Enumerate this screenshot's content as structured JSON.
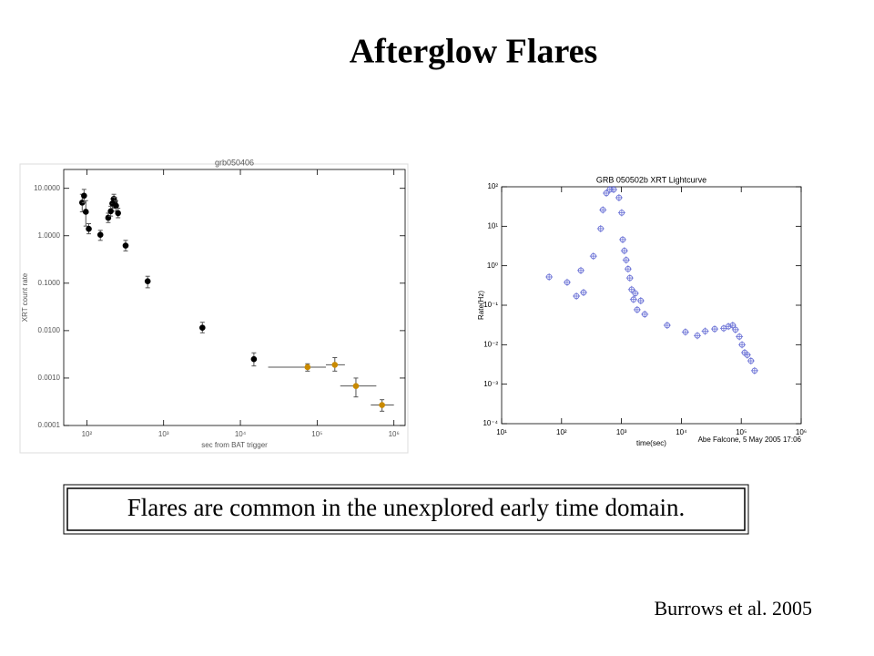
{
  "title": "Afterglow Flares",
  "chart_data": [
    {
      "type": "scatter",
      "title": "grb050406",
      "xlabel": "sec from BAT trigger",
      "ylabel": "XRT count rate",
      "xscale": "log",
      "yscale": "log",
      "marker": "filled",
      "xlim": [
        50,
        1400000
      ],
      "ylim": [
        0.0001,
        25
      ],
      "xticks": [
        {
          "value": 100,
          "label": "10²"
        },
        {
          "value": 1000,
          "label": "10³"
        },
        {
          "value": 10000,
          "label": "10⁴"
        },
        {
          "value": 100000,
          "label": "10⁵"
        },
        {
          "value": 1000000,
          "label": "10⁶"
        }
      ],
      "yticks": [
        {
          "value": 0.0001,
          "label": "0.0001"
        },
        {
          "value": 0.001,
          "label": "0.0010"
        },
        {
          "value": 0.01,
          "label": "0.0100"
        },
        {
          "value": 0.1,
          "label": "0.1000"
        },
        {
          "value": 1,
          "label": "1.0000"
        },
        {
          "value": 10,
          "label": "10.0000"
        }
      ],
      "series": [
        {
          "color": "#000000",
          "x": [
            87,
            92,
            97,
            106,
            150,
            190,
            205,
            215,
            225,
            230,
            240,
            255,
            320,
            620,
            3200,
            15000
          ],
          "values": [
            5.0,
            7.0,
            3.2,
            1.4,
            1.05,
            2.4,
            3.3,
            4.8,
            6.0,
            5.2,
            4.3,
            3.0,
            0.62,
            0.11,
            0.0115,
            0.0025
          ],
          "y_lower": [
            3.2,
            5.0,
            1.6,
            1.1,
            0.8,
            1.9,
            2.6,
            3.8,
            4.8,
            4.0,
            3.3,
            2.4,
            0.48,
            0.08,
            0.009,
            0.0018
          ],
          "y_upper": [
            7.5,
            9.5,
            5.5,
            1.8,
            1.3,
            3.0,
            4.2,
            6.0,
            7.5,
            6.5,
            5.5,
            3.8,
            0.8,
            0.14,
            0.015,
            0.0034
          ]
        },
        {
          "color": "#c98a00",
          "x": [
            75000,
            170000,
            320000,
            700000
          ],
          "values": [
            0.0017,
            0.0019,
            0.00068,
            0.00027
          ],
          "y_lower": [
            0.0014,
            0.0014,
            0.0004,
            0.0002
          ],
          "y_upper": [
            0.002,
            0.0027,
            0.001,
            0.00035
          ],
          "x_lower": [
            23000,
            130000,
            200000,
            500000
          ],
          "x_upper": [
            130000,
            230000,
            590000,
            1000000
          ]
        }
      ]
    },
    {
      "type": "scatter",
      "title": "GRB 050502b XRT Lightcurve",
      "xlabel": "time(sec)",
      "ylabel": "Rate(Hz)",
      "footer": "Abe Falcone, 5 May 2005 17:06",
      "xscale": "log",
      "yscale": "log",
      "marker": "open",
      "xlim": [
        10,
        1000000
      ],
      "ylim": [
        0.0001,
        100
      ],
      "xticks": [
        {
          "value": 10,
          "label": "10¹"
        },
        {
          "value": 100,
          "label": "10²"
        },
        {
          "value": 1000,
          "label": "10³"
        },
        {
          "value": 10000,
          "label": "10⁴"
        },
        {
          "value": 100000,
          "label": "10⁵"
        },
        {
          "value": 1000000,
          "label": "10⁶"
        }
      ],
      "yticks": [
        {
          "value": 0.0001,
          "label": "10⁻⁴"
        },
        {
          "value": 0.001,
          "label": "10⁻³"
        },
        {
          "value": 0.01,
          "label": "10⁻²"
        },
        {
          "value": 0.1,
          "label": "10⁻¹"
        },
        {
          "value": 1,
          "label": "10⁰"
        },
        {
          "value": 10,
          "label": "10¹"
        },
        {
          "value": 100,
          "label": "10²"
        }
      ],
      "series": [
        {
          "color": "#6b72d6",
          "x": [
            62,
            124,
            177,
            210,
            233,
            340,
            450,
            490,
            560,
            640,
            740,
            910,
            1010,
            1050,
            1120,
            1200,
            1290,
            1380,
            1480,
            1590,
            1700,
            1830,
            2100,
            2450,
            5800,
            11700,
            18500,
            25000,
            36000,
            51000,
            61000,
            72000,
            80000,
            93000,
            103000,
            114000,
            126000,
            145000,
            167000
          ],
          "values": [
            0.52,
            0.38,
            0.17,
            0.76,
            0.21,
            1.75,
            8.7,
            26,
            69,
            85,
            85,
            53,
            22,
            4.6,
            2.4,
            1.4,
            0.83,
            0.49,
            0.25,
            0.14,
            0.2,
            0.077,
            0.13,
            0.059,
            0.031,
            0.021,
            0.017,
            0.022,
            0.025,
            0.026,
            0.029,
            0.031,
            0.024,
            0.016,
            0.01,
            0.0063,
            0.0055,
            0.0039,
            0.0022
          ]
        }
      ]
    }
  ],
  "caption": "Flares are common in the unexplored early time domain.",
  "citation": "Burrows et al. 2005"
}
